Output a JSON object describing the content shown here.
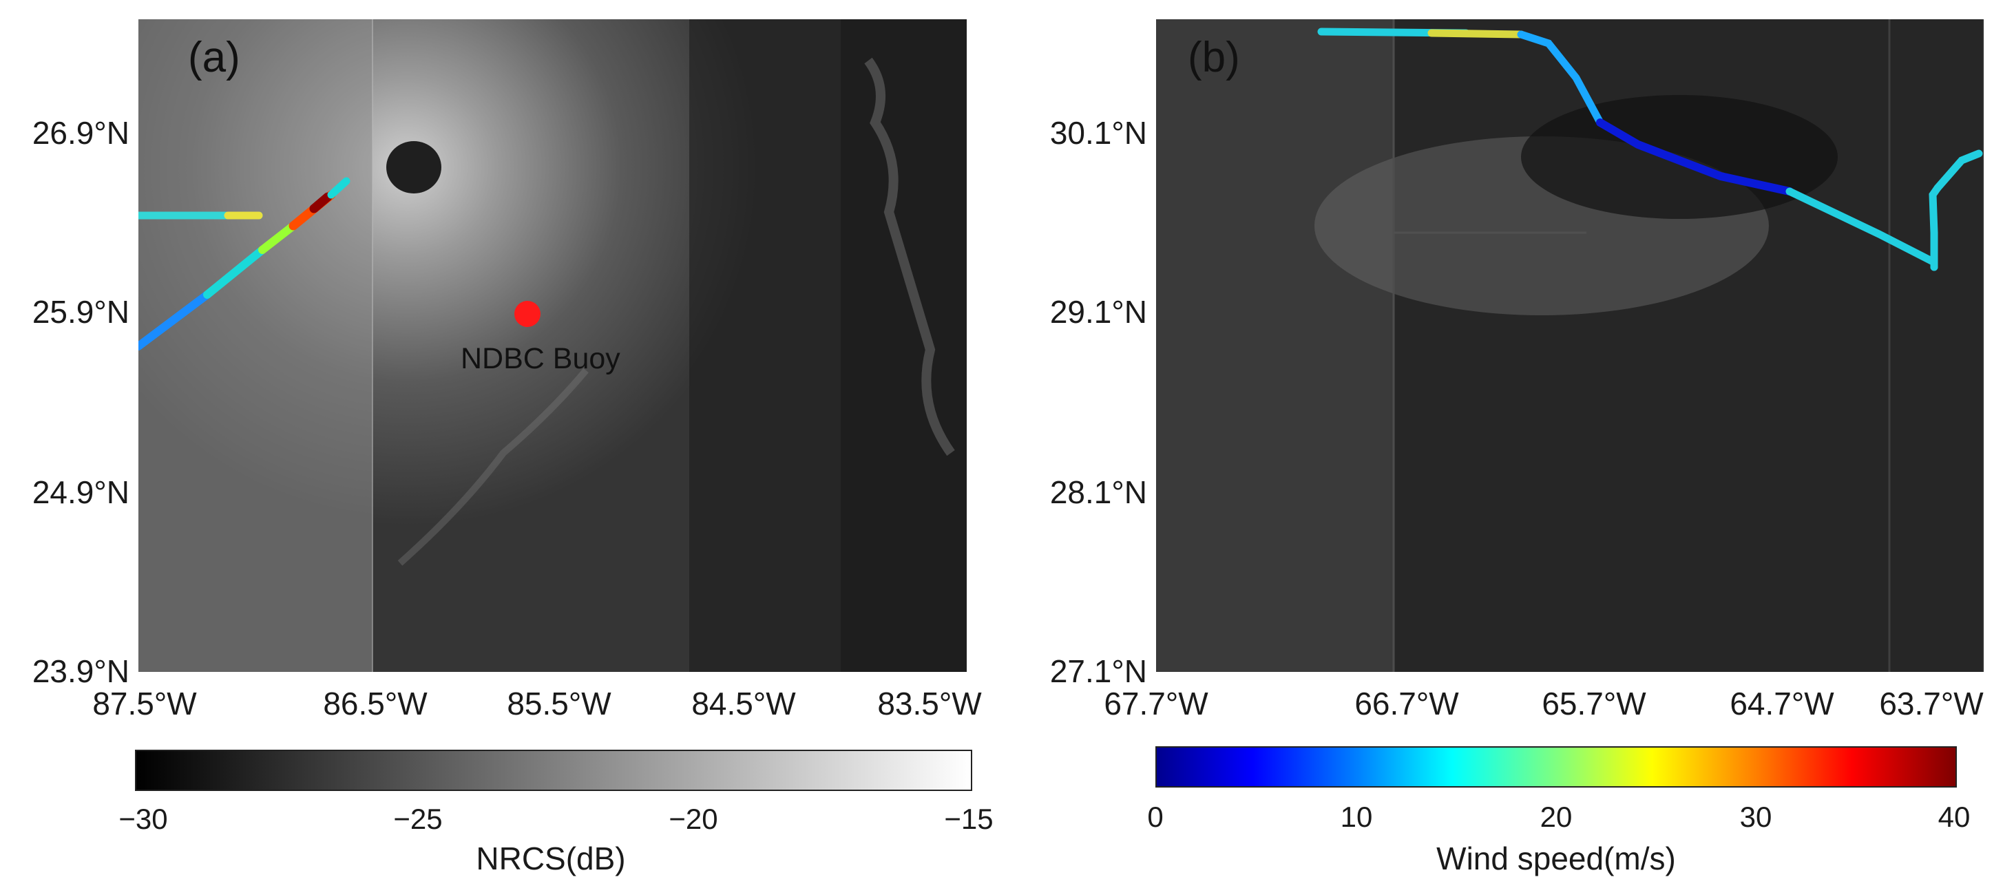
{
  "panel_a": {
    "label": "(a)",
    "y_ticks": [
      "26.9°N",
      "25.9°N",
      "24.9°N",
      "23.9°N"
    ],
    "x_ticks": [
      "87.5°W",
      "86.5°W",
      "85.5°W",
      "84.5°W",
      "83.5°W"
    ],
    "buoy_label": "NDBC Buoy",
    "buoy_color": "#ff1a1a"
  },
  "panel_b": {
    "label": "(b)",
    "y_ticks": [
      "30.1°N",
      "29.1°N",
      "28.1°N",
      "27.1°N"
    ],
    "x_ticks": [
      "67.7°W",
      "66.7°W",
      "65.7°W",
      "64.7°W",
      "63.7°W"
    ]
  },
  "colorbar_nrcs": {
    "title": "NRCS(dB)",
    "ticks": [
      "−30",
      "−25",
      "−20",
      "−15"
    ],
    "range": [
      -30,
      -15
    ]
  },
  "colorbar_wind": {
    "title": "Wind speed(m/s)",
    "ticks": [
      "0",
      "10",
      "20",
      "30",
      "40"
    ],
    "range": [
      0,
      40
    ]
  },
  "colors": {
    "wind_low": "#00008f",
    "wind_mid": "#00ffff",
    "wind_high": "#7f0000"
  }
}
